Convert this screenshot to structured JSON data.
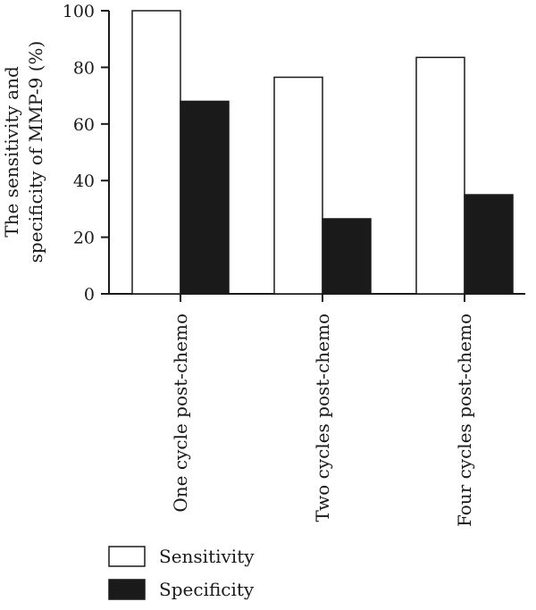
{
  "chart_data": {
    "type": "bar",
    "title": "",
    "xlabel": "",
    "ylabel_lines": [
      "The sensitivity and",
      "specificity of MMP-9 (%)"
    ],
    "categories": [
      "One cycle post-chemo",
      "Two cycles post-chemo",
      "Four cycles post-chemo"
    ],
    "series": [
      {
        "name": "Sensitivity",
        "values": [
          100,
          76.5,
          83.5
        ],
        "fill": "#ffffff",
        "stroke": "#1a1a1a"
      },
      {
        "name": "Specificity",
        "values": [
          68,
          26.5,
          35
        ],
        "fill": "#1a1a1a",
        "stroke": "#1a1a1a"
      }
    ],
    "ylim": [
      0,
      100
    ],
    "yticks": [
      0,
      20,
      40,
      60,
      80,
      100
    ],
    "grid": false,
    "legend_position": "bottom-left"
  }
}
